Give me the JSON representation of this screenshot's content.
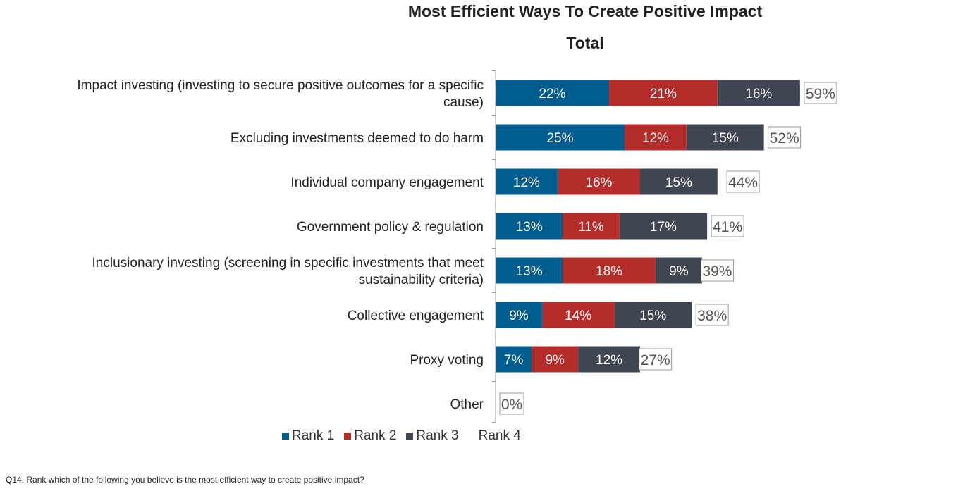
{
  "chart_data": {
    "type": "bar",
    "orientation": "horizontal",
    "stacked": true,
    "title": "Most Efficient Ways To Create Positive Impact",
    "subtitle": "Total",
    "categories": [
      "Impact investing (investing to secure positive outcomes for a specific cause)",
      "Excluding investments deemed to do harm",
      "Individual company engagement",
      "Government policy & regulation",
      "Inclusionary investing (screening in specific investments that meet sustainability criteria)",
      "Collective engagement",
      "Proxy voting",
      "Other"
    ],
    "category_lines": [
      [
        "Impact investing (investing to secure positive outcomes for a specific",
        "cause)"
      ],
      [
        "Excluding investments deemed to do harm"
      ],
      [
        "Individual company engagement"
      ],
      [
        "Government policy & regulation"
      ],
      [
        "Inclusionary investing (screening in specific investments that meet",
        "sustainability criteria)"
      ],
      [
        "Collective engagement"
      ],
      [
        "Proxy voting"
      ],
      [
        "Other"
      ]
    ],
    "series": [
      {
        "name": "Rank 1",
        "color": "#005d8f",
        "values": [
          22,
          25,
          12,
          13,
          13,
          9,
          7,
          0
        ]
      },
      {
        "name": "Rank 2",
        "color": "#b52d2a",
        "values": [
          21,
          12,
          16,
          11,
          18,
          14,
          9,
          0
        ]
      },
      {
        "name": "Rank 3",
        "color": "#3f4652",
        "values": [
          16,
          15,
          15,
          17,
          9,
          15,
          12,
          0
        ]
      },
      {
        "name": "Rank 4",
        "color": "#ffffff",
        "values": [
          0,
          0,
          0,
          0,
          0,
          0,
          0,
          0
        ]
      }
    ],
    "totals": [
      59,
      52,
      44,
      41,
      39,
      38,
      27,
      0
    ],
    "xlim": [
      0,
      100
    ],
    "grid": false,
    "legend_position": "bottom"
  },
  "footnote": "Q14. Rank which of the following you believe is the most efficient way to create positive impact?"
}
